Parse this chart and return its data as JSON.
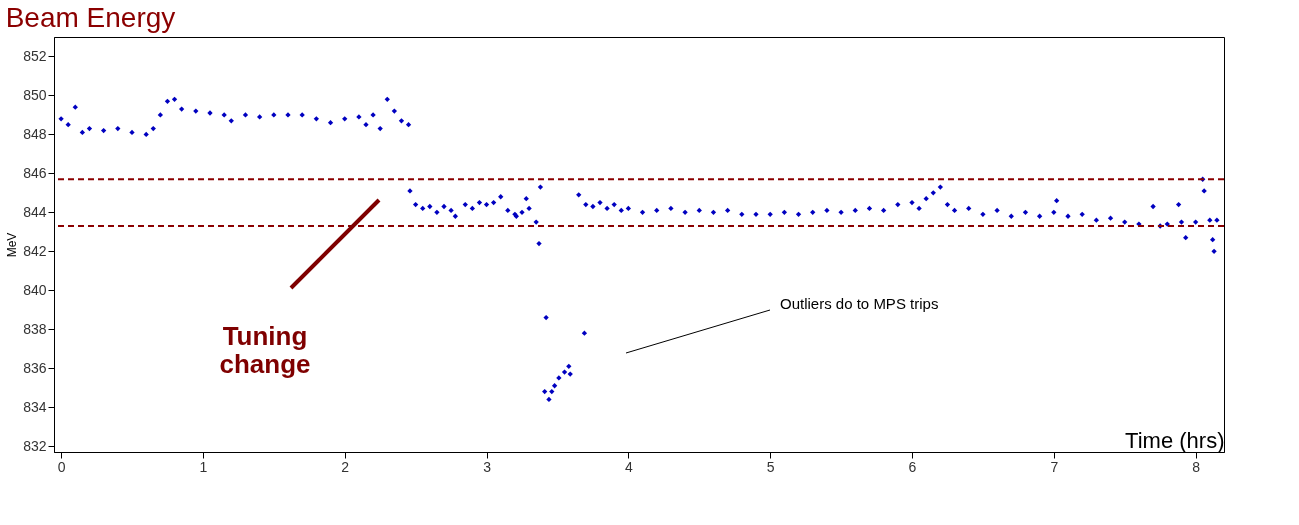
{
  "chart_data": {
    "type": "scatter",
    "title": "Beam Energy",
    "xlabel": "Time (hrs)",
    "ylabel": "MeV",
    "x": [
      0.0,
      0.05,
      0.1,
      0.15,
      0.2,
      0.3,
      0.4,
      0.5,
      0.6,
      0.65,
      0.7,
      0.75,
      0.8,
      0.85,
      0.95,
      1.05,
      1.15,
      1.2,
      1.3,
      1.4,
      1.5,
      1.6,
      1.7,
      1.8,
      1.9,
      2.0,
      2.1,
      2.15,
      2.2,
      2.25,
      2.3,
      2.35,
      2.4,
      2.45,
      2.46,
      2.5,
      2.55,
      2.6,
      2.65,
      2.7,
      2.75,
      2.78,
      2.85,
      2.9,
      2.95,
      3.0,
      3.05,
      3.1,
      3.15,
      3.2,
      3.21,
      3.25,
      3.28,
      3.3,
      3.35,
      3.37,
      3.38,
      3.41,
      3.42,
      3.44,
      3.46,
      3.48,
      3.51,
      3.55,
      3.58,
      3.59,
      3.65,
      3.69,
      3.7,
      3.75,
      3.8,
      3.85,
      3.9,
      3.95,
      4.0,
      4.1,
      4.2,
      4.3,
      4.4,
      4.5,
      4.6,
      4.7,
      4.8,
      4.9,
      5.0,
      5.1,
      5.2,
      5.3,
      5.4,
      5.5,
      5.6,
      5.7,
      5.8,
      5.9,
      6.0,
      6.05,
      6.1,
      6.15,
      6.2,
      6.25,
      6.3,
      6.4,
      6.5,
      6.6,
      6.7,
      6.8,
      6.9,
      7.0,
      7.02,
      7.1,
      7.2,
      7.3,
      7.4,
      7.5,
      7.6,
      7.7,
      7.75,
      7.8,
      7.88,
      7.9,
      7.93,
      8.0,
      8.05,
      8.06,
      8.1,
      8.12,
      8.13,
      8.15
    ],
    "series": [
      {
        "color": "#0000c0",
        "values": [
          848.8,
          848.5,
          849.4,
          848.1,
          848.3,
          848.2,
          848.3,
          848.1,
          848.0,
          848.3,
          849.0,
          849.7,
          849.8,
          849.3,
          849.2,
          849.1,
          849.0,
          848.7,
          849.0,
          848.9,
          849.0,
          849.0,
          849.0,
          848.8,
          848.6,
          848.8,
          848.9,
          848.5,
          849.0,
          848.3,
          849.8,
          849.2,
          848.7,
          848.5,
          845.1,
          844.4,
          844.2,
          844.3,
          844.0,
          844.3,
          844.1,
          843.8,
          844.4,
          844.2,
          844.5,
          844.4,
          844.5,
          844.8,
          844.1,
          843.9,
          843.8,
          844.0,
          844.7,
          844.2,
          843.5,
          842.4,
          845.3,
          834.8,
          838.6,
          834.4,
          834.8,
          835.1,
          835.5,
          835.8,
          836.1,
          835.7,
          844.9,
          837.8,
          844.4,
          844.3,
          844.5,
          844.2,
          844.4,
          844.1,
          844.2,
          844.0,
          844.1,
          844.2,
          844.0,
          844.1,
          844.0,
          844.1,
          843.9,
          843.9,
          843.9,
          844.0,
          843.9,
          844.0,
          844.1,
          844.0,
          844.1,
          844.2,
          844.1,
          844.4,
          844.5,
          844.2,
          844.7,
          845.0,
          845.3,
          844.4,
          844.1,
          844.2,
          843.9,
          844.1,
          843.8,
          844.0,
          843.8,
          844.0,
          844.6,
          843.8,
          843.9,
          843.6,
          843.7,
          843.5,
          843.4,
          844.3,
          843.3,
          843.4,
          844.4,
          843.5,
          842.7,
          843.5,
          845.7,
          845.1,
          843.6,
          842.6,
          842.0,
          843.6
        ]
      }
    ],
    "xlim": [
      -0.05,
      8.2
    ],
    "ylim": [
      831.7,
      853
    ],
    "xticks": [
      0,
      1,
      2,
      3,
      4,
      5,
      6,
      7,
      8
    ],
    "yticks": [
      832,
      834,
      836,
      838,
      840,
      842,
      844,
      846,
      848,
      850,
      852
    ],
    "ref_lines": [
      {
        "axis": "y",
        "value": 845.7,
        "color": "#8b0000",
        "line_style": "dashed"
      },
      {
        "axis": "y",
        "value": 843.3,
        "color": "#8b0000",
        "line_style": "dashed"
      }
    ],
    "annotations": [
      "Tuning change",
      "Outliers do to MPS trips"
    ],
    "marker": "diamond",
    "grid": false
  }
}
